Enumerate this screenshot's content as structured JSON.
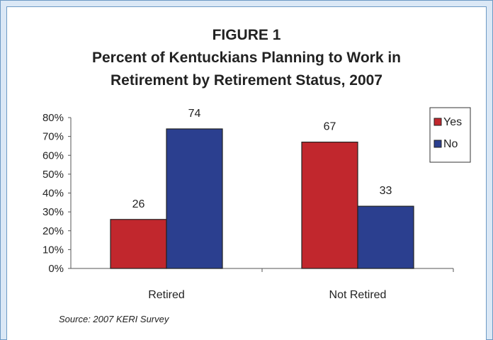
{
  "figure": {
    "label": "FIGURE 1",
    "title_line1": "Percent of Kentuckians Planning to Work in",
    "title_line2": "Retirement by Retirement Status, 2007",
    "source": "Source: 2007 KERI Survey"
  },
  "chart_data": {
    "type": "bar",
    "categories": [
      "Retired",
      "Not Retired"
    ],
    "series": [
      {
        "name": "Yes",
        "values": [
          26,
          67
        ],
        "labels": [
          "26",
          "67"
        ],
        "color": "#c1272d"
      },
      {
        "name": "No",
        "values": [
          74,
          33
        ],
        "labels": [
          "74",
          "33"
        ],
        "color": "#2b3f8f"
      }
    ],
    "ylim": [
      0,
      80
    ],
    "yticks": [
      "0%",
      "10%",
      "20%",
      "30%",
      "40%",
      "50%",
      "60%",
      "70%",
      "80%"
    ],
    "legend": "top-right",
    "grid": false
  }
}
